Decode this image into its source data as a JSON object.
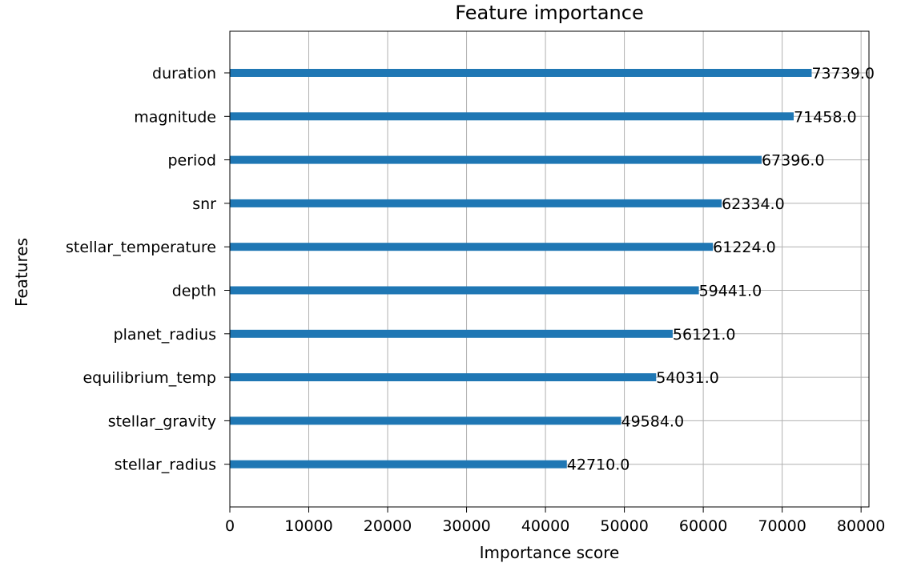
{
  "chart_data": {
    "type": "bar",
    "orientation": "horizontal",
    "title": "Feature importance",
    "xlabel": "Importance score",
    "ylabel": "Features",
    "xlim": [
      0,
      81000
    ],
    "xticks": [
      0,
      10000,
      20000,
      30000,
      40000,
      50000,
      60000,
      70000,
      80000
    ],
    "grid": true,
    "bar_color": "#1f77b4",
    "categories": [
      "duration",
      "magnitude",
      "period",
      "snr",
      "stellar_temperature",
      "depth",
      "planet_radius",
      "equilibrium_temp",
      "stellar_gravity",
      "stellar_radius"
    ],
    "values": [
      73739,
      71458,
      67396,
      62334,
      61224,
      59441,
      56121,
      54031,
      49584,
      42710
    ],
    "value_labels": [
      "73739.0",
      "71458.0",
      "67396.0",
      "62334.0",
      "61224.0",
      "59441.0",
      "56121.0",
      "54031.0",
      "49584.0",
      "42710.0"
    ]
  }
}
